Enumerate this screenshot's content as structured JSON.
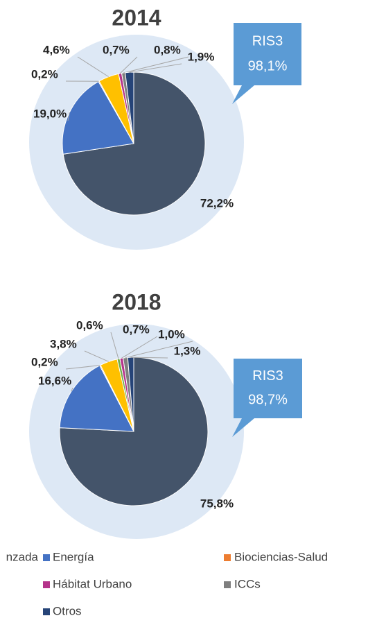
{
  "chart_data": [
    {
      "type": "pie",
      "title": "2014",
      "categories": [
        "nzada",
        "Energía",
        "Biociencias-Salud",
        null,
        "Hábitat Urbano",
        "ICCs",
        "Otros"
      ],
      "values": [
        72.2,
        19.0,
        0.2,
        4.6,
        0.7,
        0.8,
        1.9
      ],
      "value_labels": [
        "72,2%",
        "19,0%",
        "0,2%",
        "4,6%",
        "0,7%",
        "0,8%",
        "1,9%"
      ],
      "colors": [
        "#44546a",
        "#4472c4",
        "#ed7d31",
        "#ffc000",
        "#b4338a",
        "#7f7f7f",
        "#264478"
      ],
      "annotations": [
        "RIS3",
        "98,1%"
      ]
    },
    {
      "type": "pie",
      "title": "2018",
      "values": [
        75.8,
        16.6,
        0.2,
        3.8,
        0.6,
        0.7,
        1.0,
        1.3
      ],
      "value_labels": [
        "75,8%",
        "16,6%",
        "0,2%",
        "3,8%",
        "0,6%",
        "0,7%",
        "1,0%",
        "1,3%"
      ],
      "colors": [
        "#44546a",
        "#4472c4",
        "#ed7d31",
        "#ffc000",
        "#70ad47",
        "#b4338a",
        "#7f7f7f",
        "#264478"
      ],
      "annotations": [
        "RIS3",
        "98,7%"
      ]
    }
  ]
}
